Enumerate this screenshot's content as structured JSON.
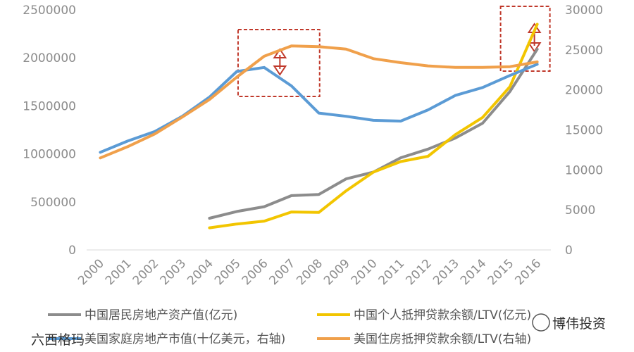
{
  "chart_data": {
    "type": "line",
    "categories": [
      "2000",
      "2001",
      "2002",
      "2003",
      "2004",
      "2005",
      "2006",
      "2007",
      "2008",
      "2009",
      "2010",
      "2011",
      "2012",
      "2013",
      "2014",
      "2015",
      "2016"
    ],
    "left_axis": {
      "min": 0,
      "max": 2500000,
      "ticks": [
        "0",
        "500000",
        "1000000",
        "1500000",
        "2000000",
        "2500000"
      ]
    },
    "right_axis": {
      "min": 0,
      "max": 30000,
      "ticks": [
        "0",
        "5000",
        "10000",
        "15000",
        "20000",
        "25000",
        "30000"
      ]
    },
    "series": [
      {
        "name": "中国居民房地产资产值(亿元)",
        "color": "#8c8c8c",
        "axis": "left",
        "values": [
          null,
          null,
          null,
          null,
          330000,
          400000,
          450000,
          565000,
          578000,
          740000,
          810000,
          960000,
          1050000,
          1165000,
          1320000,
          1650000,
          2090000
        ]
      },
      {
        "name": "中国个人抵押贷款余额/LTV(亿元)",
        "color": "#f2c500",
        "axis": "left",
        "values": [
          null,
          null,
          null,
          null,
          230000,
          270000,
          300000,
          395000,
          390000,
          615000,
          810000,
          920000,
          975000,
          1200000,
          1380000,
          1700000,
          2350000
        ]
      },
      {
        "name": "美国家庭房地产市值(十亿美元，右轴)",
        "color": "#5b9bd5",
        "axis": "right",
        "values": [
          12200,
          13600,
          14800,
          16700,
          19100,
          22300,
          22800,
          20500,
          17100,
          16700,
          16200,
          16100,
          17500,
          19300,
          20300,
          21800,
          23200
        ]
      },
      {
        "name": "美国住房抵押贷款余额/LTV(右轴)",
        "color": "#f0a04b",
        "axis": "right",
        "values": [
          11500,
          12900,
          14500,
          16600,
          18800,
          21600,
          24200,
          25500,
          25400,
          25100,
          23900,
          23400,
          23000,
          22800,
          22800,
          22900,
          23500
        ]
      }
    ],
    "legend_position": "bottom",
    "grid": false
  },
  "watermark": {
    "left_text": "六西格玛",
    "right_text": "博伟投资"
  }
}
